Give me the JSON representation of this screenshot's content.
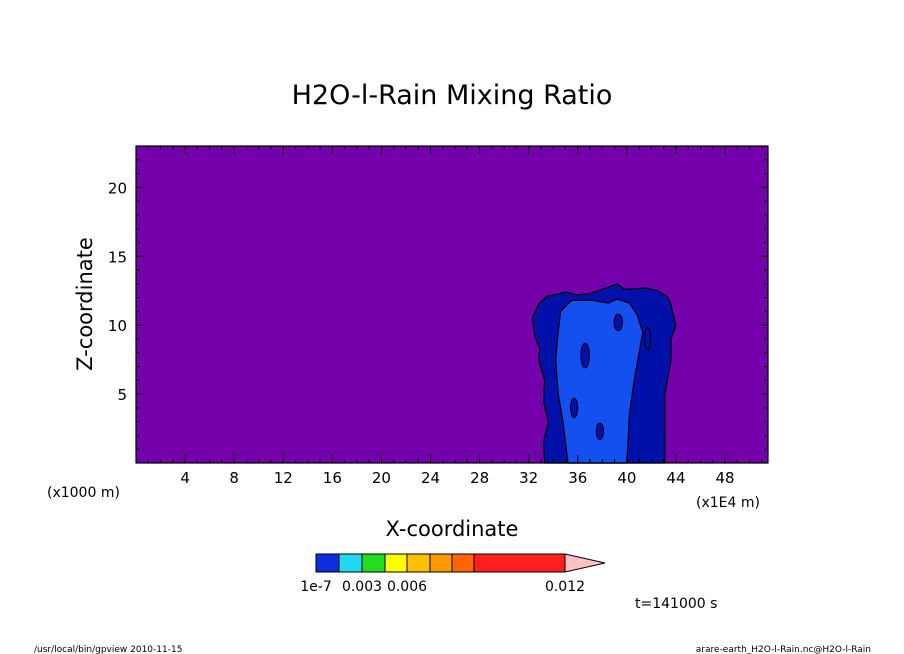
{
  "chart_data": {
    "type": "heatmap",
    "title": "H2O-l-Rain Mixing Ratio",
    "xlabel": "X-coordinate",
    "ylabel": "Z-coordinate",
    "x_unit_left": "(x1000 m)",
    "x_unit_right": "(x1E4 m)",
    "x_ticks": [
      "4",
      "8",
      "12",
      "16",
      "20",
      "24",
      "28",
      "32",
      "36",
      "40",
      "44",
      "48"
    ],
    "y_ticks": [
      "5",
      "10",
      "15",
      "20"
    ],
    "xlim": [
      0,
      51.5
    ],
    "ylim": [
      0,
      23
    ],
    "background_color": "#7300aa",
    "color_levels": [
      {
        "value": 1e-07,
        "color": "#0a2ee0"
      },
      {
        "value": 0.0015,
        "color": "#22d8ee"
      },
      {
        "value": 0.003,
        "color": "#22dd22"
      },
      {
        "value": 0.0045,
        "color": "#ffff00"
      },
      {
        "value": 0.006,
        "color": "#ffc000"
      },
      {
        "value": 0.0075,
        "color": "#ff9900"
      },
      {
        "value": 0.009,
        "color": "#ff6600"
      },
      {
        "value": 0.0105,
        "color": "#ff1f1f"
      },
      {
        "value": 0.012,
        "color": "#ff8080"
      }
    ],
    "colorbar_labels": [
      "1e-7",
      "0.003",
      "0.006",
      "0.012"
    ],
    "time_label": "t=141000 s",
    "contour_regions": [
      {
        "level": "outer",
        "color": "#0010a8",
        "points": [
          [
            33.3,
            0
          ],
          [
            33.2,
            1.5
          ],
          [
            33.6,
            3.0
          ],
          [
            33.2,
            4.5
          ],
          [
            33.3,
            6
          ],
          [
            32.8,
            7.5
          ],
          [
            32.9,
            8.3
          ],
          [
            32.5,
            9.2
          ],
          [
            32.3,
            10.5
          ],
          [
            32.8,
            11.5
          ],
          [
            33.5,
            12.1
          ],
          [
            35,
            12.4
          ],
          [
            36,
            12.2
          ],
          [
            37,
            12.3
          ],
          [
            38,
            12.6
          ],
          [
            39.2,
            13.0
          ],
          [
            39.8,
            12.6
          ],
          [
            41.5,
            12.7
          ],
          [
            42.5,
            12.5
          ],
          [
            43.4,
            12.0
          ],
          [
            43.6,
            11.4
          ],
          [
            44.0,
            10.0
          ],
          [
            43.6,
            9.0
          ],
          [
            43.6,
            7.5
          ],
          [
            43.1,
            5.0
          ],
          [
            43.1,
            2.0
          ],
          [
            43.1,
            0
          ]
        ]
      },
      {
        "level": "inner",
        "color": "#1450f0",
        "points": [
          [
            35.2,
            0
          ],
          [
            35.0,
            1.5
          ],
          [
            34.8,
            3.0
          ],
          [
            34.4,
            5.0
          ],
          [
            34.2,
            7.5
          ],
          [
            34.4,
            9.5
          ],
          [
            34.6,
            11.0
          ],
          [
            35.5,
            11.8
          ],
          [
            37.2,
            11.8
          ],
          [
            38.5,
            11.6
          ],
          [
            39.2,
            11.9
          ],
          [
            40.2,
            11.6
          ],
          [
            40.8,
            10.8
          ],
          [
            41.3,
            9.5
          ],
          [
            41.0,
            8.0
          ],
          [
            40.6,
            6.0
          ],
          [
            40.2,
            3.5
          ],
          [
            40.0,
            0
          ]
        ]
      }
    ]
  },
  "footer": {
    "left": "/usr/local/bin/gpview  2010-11-15",
    "right": "arare-earth_H2O-l-Rain.nc@H2O-l-Rain"
  }
}
